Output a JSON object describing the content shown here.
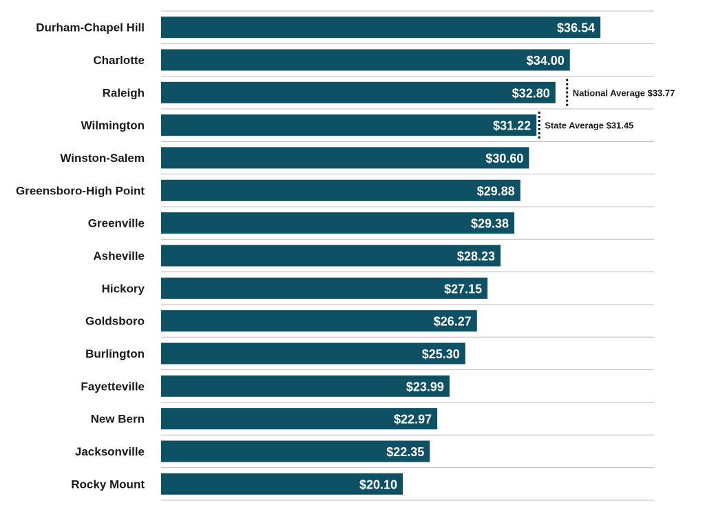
{
  "chart_data": {
    "type": "bar",
    "orientation": "horizontal",
    "title": "",
    "xlabel": "",
    "ylabel": "",
    "categories": [
      "Durham-Chapel Hill",
      "Charlotte",
      "Raleigh",
      "Wilmington",
      "Winston-Salem",
      "Greensboro-High Point",
      "Greenville",
      "Asheville",
      "Hickory",
      "Goldsboro",
      "Burlington",
      "Fayetteville",
      "New Bern",
      "Jacksonville",
      "Rocky Mount"
    ],
    "values": [
      36.54,
      34.0,
      32.8,
      31.22,
      30.6,
      29.88,
      29.38,
      28.23,
      27.15,
      26.27,
      25.3,
      23.99,
      22.97,
      22.35,
      20.1
    ],
    "value_labels": [
      "$36.54",
      "$34.00",
      "$32.80",
      "$31.22",
      "$30.60",
      "$29.88",
      "$29.38",
      "$28.23",
      "$27.15",
      "$26.27",
      "$25.30",
      "$23.99",
      "$22.97",
      "$22.35",
      "$20.10"
    ],
    "xlim": [
      0,
      41
    ],
    "grid": true,
    "bar_color": "#0e5164",
    "reference_lines": [
      {
        "label": "National Average $33.77",
        "value": 33.77,
        "row": 2
      },
      {
        "label": "State Average $31.45",
        "value": 31.45,
        "row": 3
      }
    ]
  }
}
